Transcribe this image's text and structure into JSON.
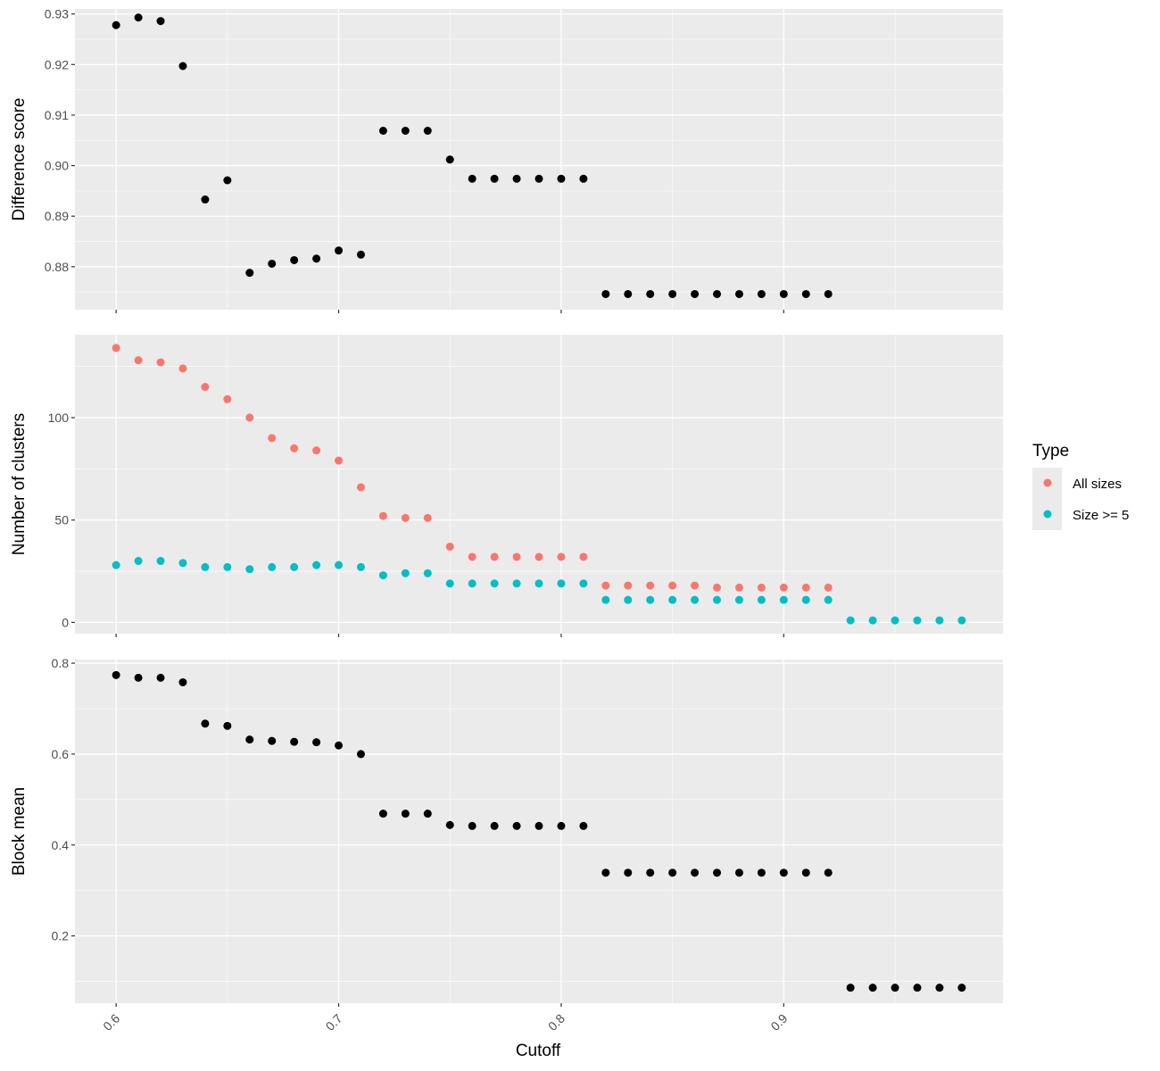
{
  "chart_data": {
    "type": "scatter",
    "xlabel": "Cutoff",
    "x_ticks": [
      0.6,
      0.7,
      0.8,
      0.9
    ],
    "x_tick_labels": [
      "0.6",
      "0.7",
      "0.8",
      "0.9"
    ],
    "xlim": [
      0.5815,
      0.9985
    ],
    "legend": {
      "title": "Type",
      "placement": "right",
      "entries": [
        {
          "label": "All sizes",
          "color": "#F8766D"
        },
        {
          "label": "Size >= 5",
          "color": "#00BFC4"
        }
      ]
    },
    "panels": [
      {
        "ylabel": "Difference score",
        "ylim": [
          0.8715,
          0.931
        ],
        "y_ticks": [
          0.88,
          0.89,
          0.9,
          0.91,
          0.92,
          0.93
        ],
        "y_tick_labels": [
          "0.88",
          "0.89",
          "0.90",
          "0.91",
          "0.92",
          "0.93"
        ],
        "series": [
          {
            "color": "#000000",
            "x": [
              0.6,
              0.61,
              0.62,
              0.63,
              0.64,
              0.65,
              0.66,
              0.67,
              0.68,
              0.69,
              0.7,
              0.71,
              0.72,
              0.73,
              0.74,
              0.75,
              0.76,
              0.77,
              0.78,
              0.79,
              0.8,
              0.81,
              0.82,
              0.83,
              0.84,
              0.85,
              0.86,
              0.87,
              0.88,
              0.89,
              0.9,
              0.91,
              0.92
            ],
            "y": [
              0.9278,
              0.9293,
              0.9286,
              0.9197,
              0.8933,
              0.8971,
              0.8788,
              0.8806,
              0.8813,
              0.8816,
              0.8832,
              0.8824,
              0.9069,
              0.9069,
              0.9069,
              0.9012,
              0.8974,
              0.8974,
              0.8974,
              0.8974,
              0.8974,
              0.8974,
              0.8746,
              0.8746,
              0.8746,
              0.8746,
              0.8746,
              0.8746,
              0.8746,
              0.8746,
              0.8746,
              0.8746,
              0.8746
            ]
          }
        ]
      },
      {
        "ylabel": "Number of clusters",
        "ylim": [
          -5.5,
          140.5
        ],
        "y_ticks": [
          0,
          50,
          100
        ],
        "y_tick_labels": [
          "0",
          "50",
          "100"
        ],
        "series": [
          {
            "name": "All sizes",
            "color": "#F8766D",
            "x": [
              0.6,
              0.61,
              0.62,
              0.63,
              0.64,
              0.65,
              0.66,
              0.67,
              0.68,
              0.69,
              0.7,
              0.71,
              0.72,
              0.73,
              0.74,
              0.75,
              0.76,
              0.77,
              0.78,
              0.79,
              0.8,
              0.81,
              0.82,
              0.83,
              0.84,
              0.85,
              0.86,
              0.87,
              0.88,
              0.89,
              0.9,
              0.91,
              0.92
            ],
            "y": [
              134,
              128,
              127,
              124,
              115,
              109,
              100,
              90,
              85,
              84,
              79,
              66,
              52,
              51,
              51,
              37,
              32,
              32,
              32,
              32,
              32,
              32,
              18,
              18,
              18,
              18,
              18,
              17,
              17,
              17,
              17,
              17,
              17
            ]
          },
          {
            "name": "Size >= 5",
            "color": "#00BFC4",
            "x": [
              0.6,
              0.61,
              0.62,
              0.63,
              0.64,
              0.65,
              0.66,
              0.67,
              0.68,
              0.69,
              0.7,
              0.71,
              0.72,
              0.73,
              0.74,
              0.75,
              0.76,
              0.77,
              0.78,
              0.79,
              0.8,
              0.81,
              0.82,
              0.83,
              0.84,
              0.85,
              0.86,
              0.87,
              0.88,
              0.89,
              0.9,
              0.91,
              0.92,
              0.93,
              0.94,
              0.95,
              0.96,
              0.97,
              0.98
            ],
            "y": [
              28,
              30,
              30,
              29,
              27,
              27,
              26,
              27,
              27,
              28,
              28,
              27,
              23,
              24,
              24,
              19,
              19,
              19,
              19,
              19,
              19,
              19,
              11,
              11,
              11,
              11,
              11,
              11,
              11,
              11,
              11,
              11,
              11,
              1,
              1,
              1,
              1,
              1,
              1
            ]
          }
        ]
      },
      {
        "ylabel": "Block mean",
        "ylim": [
          0.052,
          0.808
        ],
        "y_ticks": [
          0.2,
          0.4,
          0.6,
          0.8
        ],
        "y_tick_labels": [
          "0.2",
          "0.4",
          "0.6",
          "0.8"
        ],
        "series": [
          {
            "color": "#000000",
            "x": [
              0.6,
              0.61,
              0.62,
              0.63,
              0.64,
              0.65,
              0.66,
              0.67,
              0.68,
              0.69,
              0.7,
              0.71,
              0.72,
              0.73,
              0.74,
              0.75,
              0.76,
              0.77,
              0.78,
              0.79,
              0.8,
              0.81,
              0.82,
              0.83,
              0.84,
              0.85,
              0.86,
              0.87,
              0.88,
              0.89,
              0.9,
              0.91,
              0.92,
              0.93,
              0.94,
              0.95,
              0.96,
              0.97,
              0.98
            ],
            "y": [
              0.774,
              0.768,
              0.768,
              0.758,
              0.667,
              0.662,
              0.632,
              0.629,
              0.627,
              0.626,
              0.619,
              0.6,
              0.469,
              0.469,
              0.469,
              0.444,
              0.442,
              0.442,
              0.442,
              0.442,
              0.442,
              0.442,
              0.339,
              0.339,
              0.339,
              0.339,
              0.339,
              0.339,
              0.339,
              0.339,
              0.339,
              0.339,
              0.339,
              0.086,
              0.086,
              0.086,
              0.086,
              0.086,
              0.086
            ]
          }
        ]
      }
    ]
  }
}
